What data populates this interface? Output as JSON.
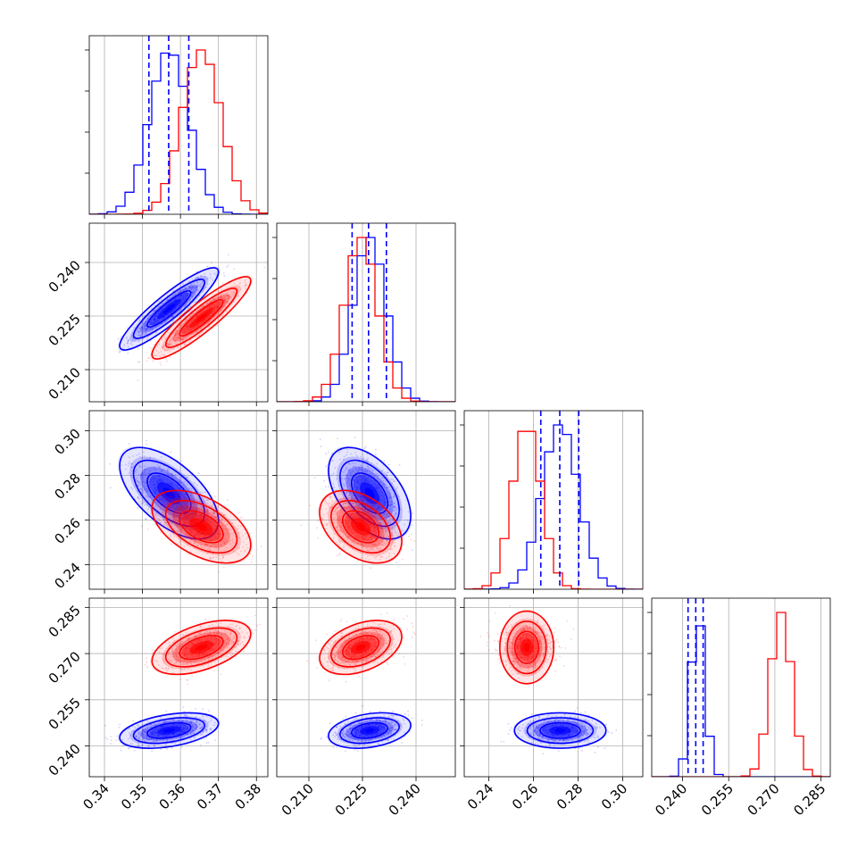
{
  "chart_data": {
    "type": "corner",
    "parameters": [
      "p0",
      "p1",
      "p2",
      "p3"
    ],
    "grid": true,
    "colors": {
      "series_a": "#0000ff",
      "series_b": "#ff0000",
      "quantile_line": "#0000ff"
    },
    "axes": {
      "p0": {
        "range": [
          0.336,
          0.383
        ],
        "ticks": [
          0.34,
          0.35,
          0.36,
          0.37,
          0.38
        ],
        "tick_labels": [
          "0.34",
          "0.35",
          "0.36",
          "0.37",
          "0.38"
        ]
      },
      "p1": {
        "range": [
          0.201,
          0.251
        ],
        "ticks": [
          0.21,
          0.225,
          0.24
        ],
        "tick_labels": [
          "0.210",
          "0.225",
          "0.240"
        ]
      },
      "p2": {
        "range": [
          0.229,
          0.309
        ],
        "ticks": [
          0.24,
          0.26,
          0.28,
          0.3
        ],
        "tick_labels": [
          "0.24",
          "0.26",
          "0.28",
          "0.30"
        ]
      },
      "p3": {
        "range": [
          0.23,
          0.288
        ],
        "ticks": [
          0.24,
          0.255,
          0.27,
          0.285
        ],
        "tick_labels": [
          "0.240",
          "0.255",
          "0.270",
          "0.285"
        ]
      }
    },
    "series": [
      {
        "color": "#0000ff",
        "mean": [
          0.357,
          0.227,
          0.272,
          0.245
        ],
        "sd": [
          0.0052,
          0.0046,
          0.0082,
          0.0023
        ],
        "corr": [
          [
            1,
            0.9,
            -0.6,
            0.4
          ],
          [
            0.9,
            1,
            -0.5,
            0.3
          ],
          [
            -0.6,
            -0.5,
            1,
            0
          ],
          [
            0.4,
            0.3,
            0,
            1
          ]
        ],
        "quantiles": [
          [
            0.3517,
            0.3569,
            0.3622
          ],
          [
            0.2221,
            0.2267,
            0.2317
          ],
          [
            0.2633,
            0.2718,
            0.2803
          ],
          [
            0.2418,
            0.2443,
            0.2467
          ]
        ]
      },
      {
        "color": "#ff0000",
        "mean": [
          0.3655,
          0.2245,
          0.257,
          0.272
        ],
        "sd": [
          0.0052,
          0.0046,
          0.0065,
          0.0035
        ],
        "corr": [
          [
            1,
            0.9,
            -0.5,
            0.5
          ],
          [
            0.9,
            1,
            -0.4,
            0.4
          ],
          [
            -0.5,
            -0.4,
            1,
            0
          ],
          [
            0.5,
            0.4,
            0,
            1
          ]
        ],
        "quantiles": []
      }
    ]
  }
}
